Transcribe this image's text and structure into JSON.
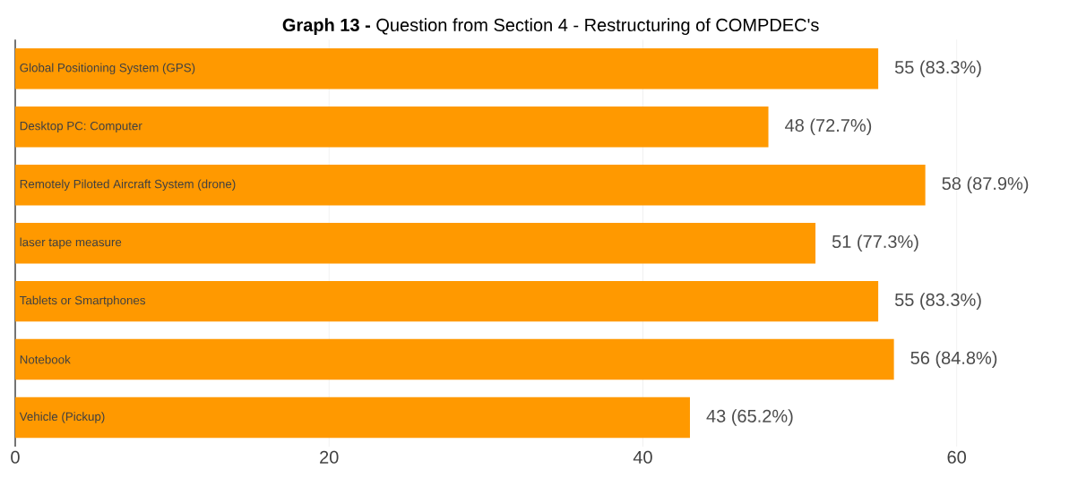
{
  "chart_data": {
    "type": "bar",
    "orientation": "horizontal",
    "title": "**Graph 13 -** Question from Section 4 - Restructuring of COMPDEC's",
    "categories": [
      "Global Positioning System (GPS)",
      "Desktop PC: Computer",
      "Remotely Piloted Aircraft System (drone)",
      "laser tape measure",
      "Tablets or Smartphones",
      "Notebook",
      "Vehicle (Pickup)"
    ],
    "values": [
      55,
      48,
      58,
      51,
      55,
      56,
      43
    ],
    "value_labels": [
      "55 (83.3%)",
      "48 (72.7%)",
      "58 (87.9%)",
      "51 (77.3%)",
      "55 (83.3%)",
      "56 (84.8%)",
      "43 (65.2%)"
    ],
    "color": "#ff9900",
    "xlim": [
      0,
      60
    ],
    "xticks": [
      0,
      20,
      40,
      60
    ],
    "grid": "x"
  }
}
